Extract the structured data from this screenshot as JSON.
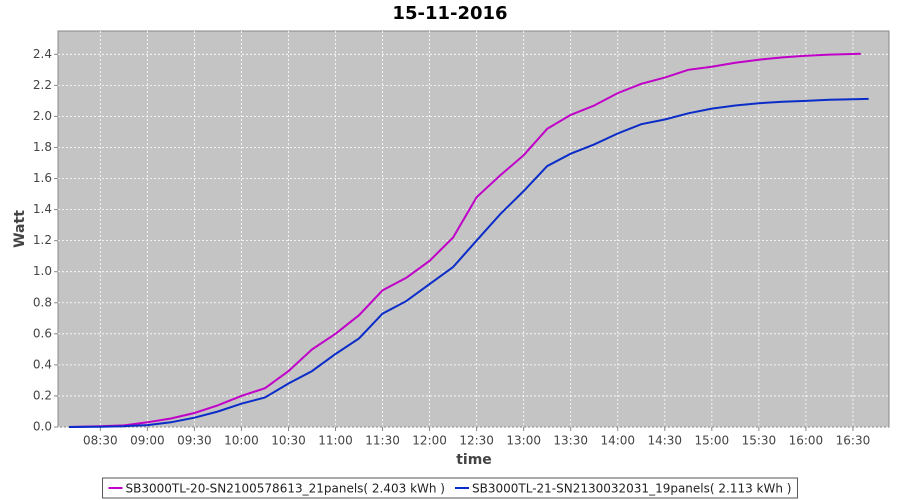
{
  "chart_data": {
    "type": "line",
    "title": "15-11-2016",
    "x_label": "time",
    "y_label": "Watt",
    "x": [
      "08:10",
      "08:30",
      "08:45",
      "09:00",
      "09:15",
      "09:30",
      "09:45",
      "10:00",
      "10:15",
      "10:30",
      "10:45",
      "11:00",
      "11:15",
      "11:30",
      "11:45",
      "12:00",
      "12:15",
      "12:30",
      "12:45",
      "13:00",
      "13:15",
      "13:30",
      "13:45",
      "14:00",
      "14:15",
      "14:30",
      "14:45",
      "15:00",
      "15:15",
      "15:30",
      "15:45",
      "16:00",
      "16:15",
      "16:35"
    ],
    "series": [
      {
        "name": "SB3000TL-20-SN2100578613_21panels( 2.403 kWh )",
        "color": "#c000c8",
        "x": [
          "08:10",
          "08:30",
          "08:45",
          "09:00",
          "09:15",
          "09:30",
          "09:45",
          "10:00",
          "10:15",
          "10:30",
          "10:45",
          "11:00",
          "11:15",
          "11:30",
          "11:45",
          "12:00",
          "12:15",
          "12:30",
          "12:45",
          "13:00",
          "13:15",
          "13:30",
          "13:45",
          "14:00",
          "14:15",
          "14:30",
          "14:45",
          "15:00",
          "15:15",
          "15:30",
          "15:45",
          "16:00",
          "16:15",
          "16:35"
        ],
        "values": [
          0,
          0.005,
          0.01,
          0.03,
          0.055,
          0.09,
          0.14,
          0.2,
          0.25,
          0.36,
          0.5,
          0.6,
          0.72,
          0.88,
          0.96,
          1.07,
          1.22,
          1.48,
          1.62,
          1.75,
          1.92,
          2.01,
          2.07,
          2.15,
          2.21,
          2.25,
          2.3,
          2.32,
          2.345,
          2.365,
          2.38,
          2.39,
          2.398,
          2.403
        ]
      },
      {
        "name": "SB3000TL-21-SN2130032031_19panels( 2.113 kWh )",
        "color": "#0a2cc8",
        "x": [
          "08:10",
          "08:30",
          "08:45",
          "09:00",
          "09:15",
          "09:30",
          "09:45",
          "10:00",
          "10:15",
          "10:30",
          "10:45",
          "11:00",
          "11:15",
          "11:30",
          "11:45",
          "12:00",
          "12:15",
          "12:30",
          "12:45",
          "13:00",
          "13:15",
          "13:30",
          "13:45",
          "14:00",
          "14:15",
          "14:30",
          "14:45",
          "15:00",
          "15:15",
          "15:30",
          "15:45",
          "16:00",
          "16:15",
          "16:30",
          "16:40"
        ],
        "values": [
          0,
          0.002,
          0.005,
          0.012,
          0.03,
          0.06,
          0.1,
          0.15,
          0.19,
          0.28,
          0.36,
          0.47,
          0.57,
          0.73,
          0.81,
          0.92,
          1.03,
          1.2,
          1.37,
          1.52,
          1.68,
          1.76,
          1.82,
          1.89,
          1.95,
          1.98,
          2.02,
          2.05,
          2.07,
          2.085,
          2.095,
          2.1,
          2.107,
          2.11,
          2.113
        ]
      }
    ],
    "xlim": [
      "08:03",
      "16:53"
    ],
    "xticks": [
      "08:30",
      "09:00",
      "09:30",
      "10:00",
      "10:30",
      "11:00",
      "11:30",
      "12:00",
      "12:30",
      "13:00",
      "13:30",
      "14:00",
      "14:30",
      "15:00",
      "15:30",
      "16:00",
      "16:30"
    ],
    "ylim": [
      0,
      2.55
    ],
    "yticks": [
      {
        "value": 0,
        "label": "0.0"
      },
      0.2,
      0.4,
      0.6,
      0.8,
      {
        "value": 1,
        "label": "1.0"
      },
      1.2,
      1.4,
      1.6,
      1.8,
      {
        "value": 2,
        "label": "2.0"
      },
      2.2,
      2.4
    ],
    "grid": true,
    "legend": "bottom"
  }
}
